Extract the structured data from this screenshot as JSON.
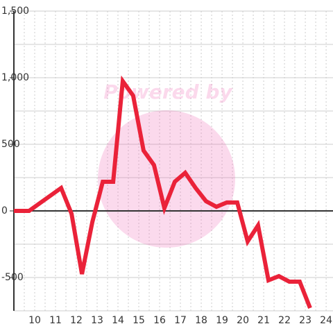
{
  "chart_data": {
    "type": "line",
    "watermark": "Powered by",
    "x": [
      9.0,
      9.73,
      11.27,
      11.77,
      12.27,
      12.77,
      13.27,
      13.77,
      14.23,
      14.73,
      15.23,
      15.73,
      16.23,
      16.73,
      17.23,
      17.73,
      18.23,
      18.73,
      19.23,
      19.73,
      20.23,
      20.73,
      21.23,
      21.73,
      22.23,
      22.73,
      23.23
    ],
    "series": [
      {
        "color": "#ea2239",
        "values": [
          0,
          0,
          172,
          -21,
          -474,
          -83,
          219,
          219,
          974,
          865,
          453,
          344,
          21,
          219,
          286,
          172,
          73,
          31,
          63,
          63,
          -229,
          -109,
          -521,
          -490,
          -531,
          -531,
          -729
        ]
      }
    ],
    "xlim": [
      9,
      24.33
    ],
    "xticks": [
      10,
      11,
      12,
      13,
      14,
      15,
      16,
      17,
      18,
      19,
      20,
      21,
      22,
      23,
      24
    ],
    "ylim": [
      -750,
      1500
    ],
    "yticks": [
      -500,
      0,
      500,
      {
        "value": 1000,
        "label": "1,000"
      },
      {
        "value": 1500,
        "label": "1,500"
      }
    ],
    "y_minor_ticks": [
      -750,
      -250,
      250,
      750,
      1250
    ],
    "x_minor_ticks": [
      9.5,
      10.5,
      11.5,
      12.5,
      13.5,
      14.5,
      15.5,
      16.5,
      17.5,
      18.5,
      19.5,
      20.5,
      21.5,
      22.5,
      23.5
    ],
    "grid": true
  }
}
